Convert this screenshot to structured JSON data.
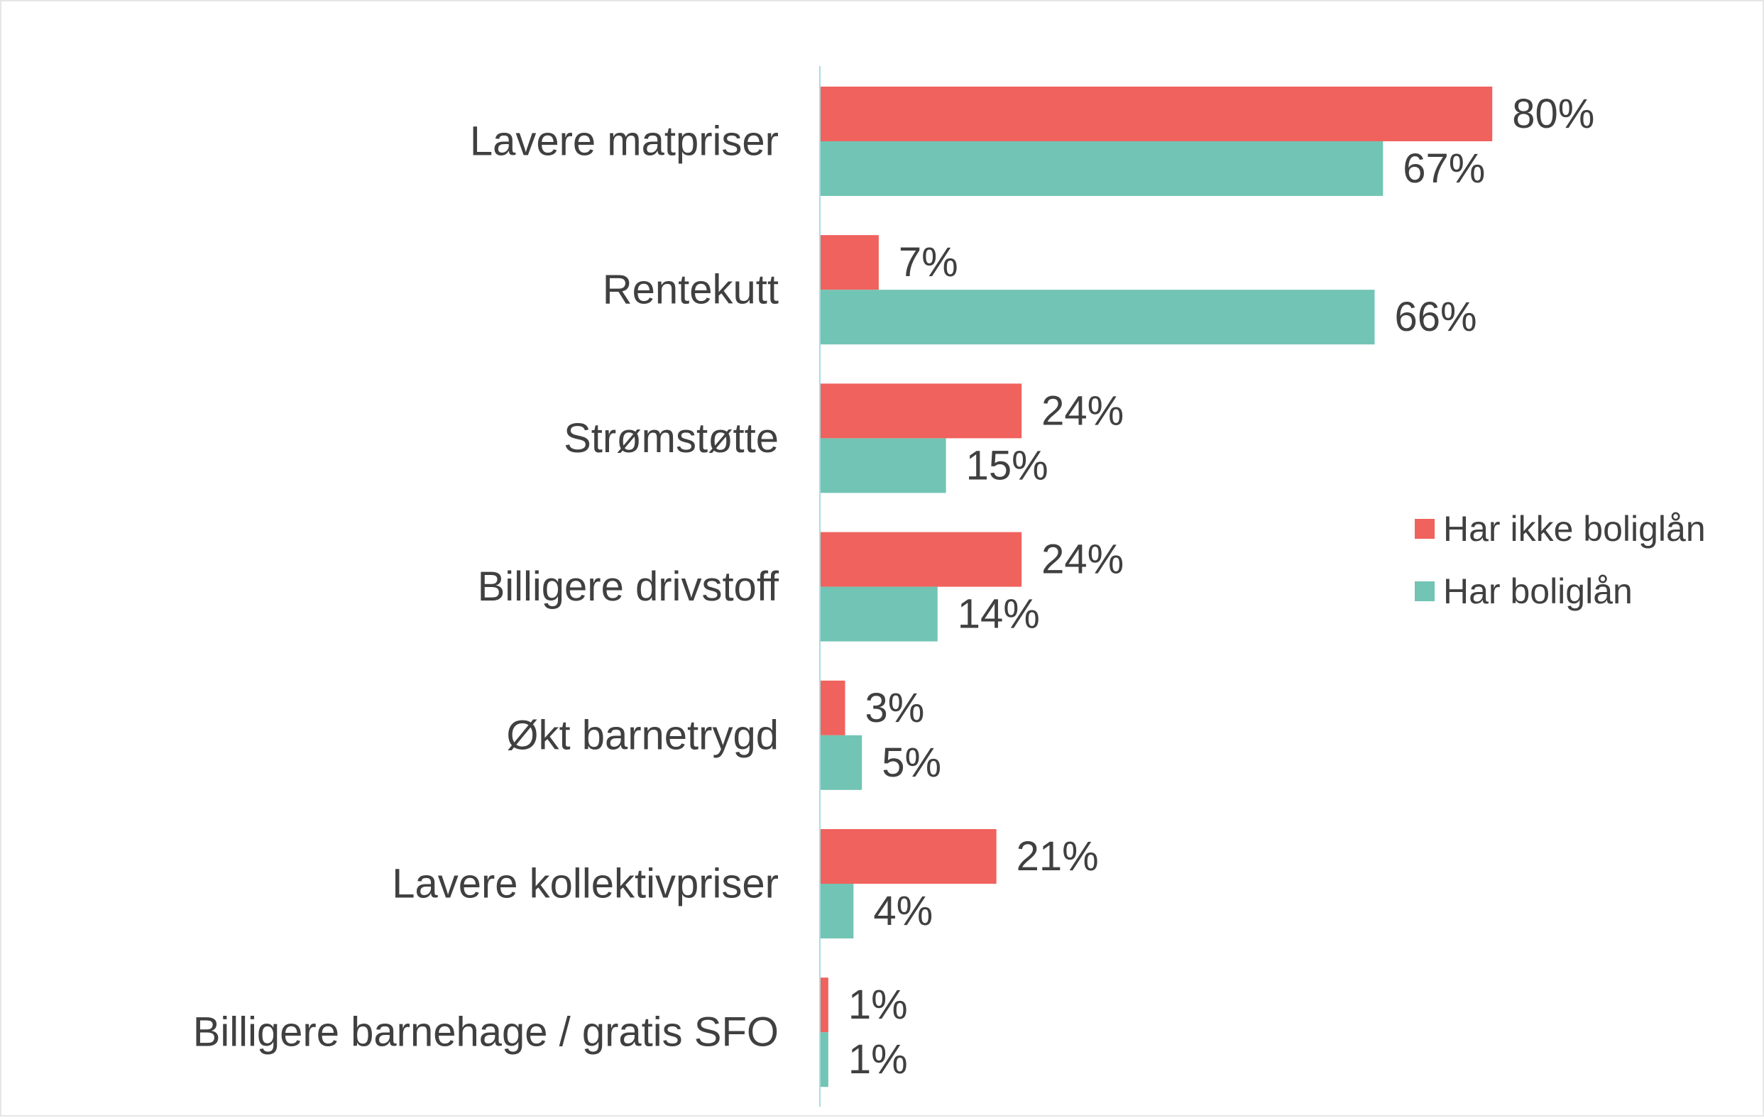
{
  "chart_data": {
    "type": "bar",
    "orientation": "horizontal",
    "categories": [
      "Lavere matpriser",
      "Rentekutt",
      "Strømstøtte",
      "Billigere drivstoff",
      "Økt barnetrygd",
      "Lavere kollektivpriser",
      "Billigere barnehage / gratis SFO"
    ],
    "series": [
      {
        "name": "Har ikke boliglån",
        "color": "#F0625D",
        "values": [
          80,
          7,
          24,
          24,
          3,
          21,
          1
        ],
        "labels": [
          "80%",
          "7%",
          "24%",
          "24%",
          "3%",
          "21%",
          "1%"
        ]
      },
      {
        "name": "Har boliglån",
        "color": "#72C4B4",
        "values": [
          67,
          66,
          15,
          14,
          5,
          4,
          1
        ],
        "labels": [
          "67%",
          "66%",
          "15%",
          "14%",
          "5%",
          "4%",
          "1%"
        ]
      }
    ],
    "value_unit": "%",
    "xlim": [
      0,
      100
    ],
    "grid": false,
    "legend_position": "right",
    "axis_color": "#A9DDE0",
    "title": "",
    "xlabel": "",
    "ylabel": ""
  }
}
